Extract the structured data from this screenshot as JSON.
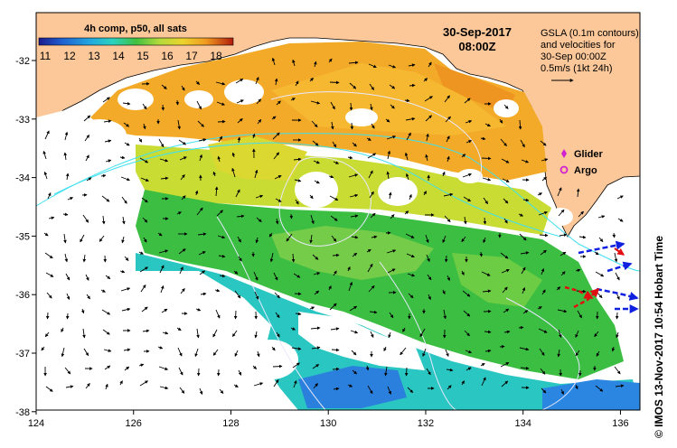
{
  "colorbar": {
    "title": "4h comp, p50, all sats",
    "labels": [
      "11",
      "12",
      "13",
      "14",
      "15",
      "16",
      "17",
      "18"
    ],
    "colors": [
      "#1c2ea0",
      "#1f6ed6",
      "#22a9e0",
      "#2ad0c4",
      "#3fc24a",
      "#a8d840",
      "#e9d830",
      "#f0a020",
      "#e86a14",
      "#b0200e"
    ]
  },
  "date": {
    "line1": "30-Sep-2017",
    "line2": "08:00Z"
  },
  "gsla_note": {
    "lines": [
      "GSLA (0.1m contours)",
      "and velocities for",
      "30-Sep 00:00Z",
      "0.5m/s (1kt 24h)"
    ]
  },
  "legend": {
    "glider": "Glider",
    "argo": "Argo",
    "glider_color": "#d020d0",
    "argo_color": "#d020d0"
  },
  "axes": {
    "x_labels": [
      "124",
      "126",
      "128",
      "130",
      "132",
      "134",
      "136"
    ],
    "y_labels": [
      "-32",
      "-33",
      "-34",
      "-35",
      "-36",
      "-37",
      "-38"
    ]
  },
  "credit": "© IMOS 13-Nov-2017 10:54 Hobart Time",
  "colors": {
    "land": "#fcc89a",
    "sst_warm": "#f0a828",
    "sst_mid": "#c8dc30",
    "sst_green": "#34c040",
    "sst_cool": "#28c8c0",
    "sst_cold": "#2878e0"
  }
}
